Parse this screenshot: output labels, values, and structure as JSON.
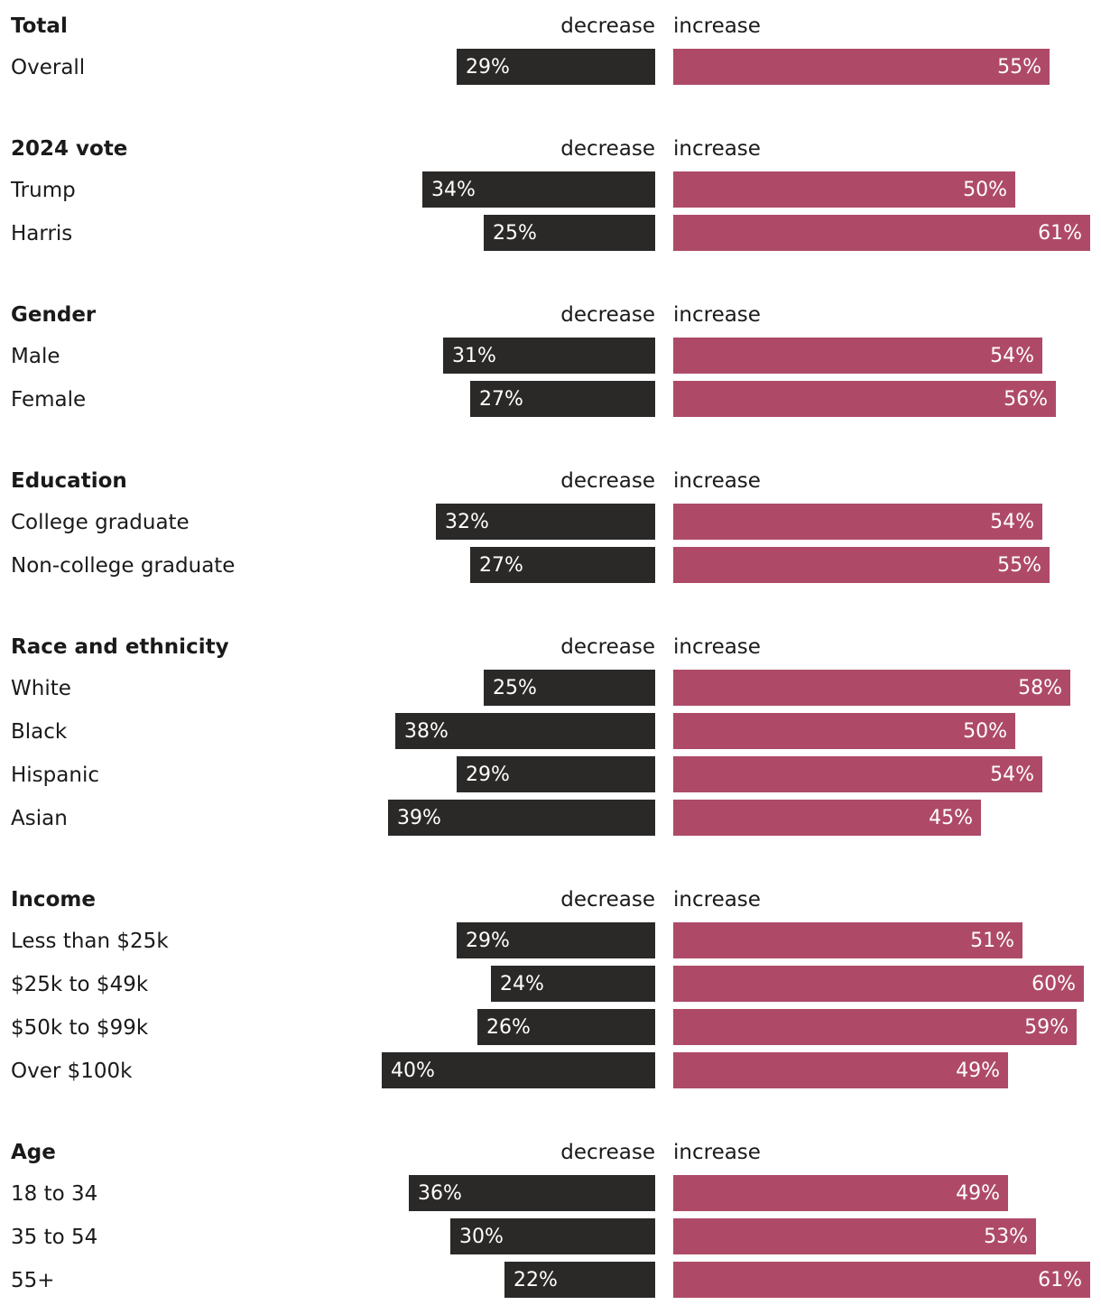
{
  "chart_data": {
    "type": "bar",
    "layout": "diverging",
    "column_labels": {
      "decrease": "decrease",
      "increase": "increase"
    },
    "colors": {
      "decrease": "#2a2928",
      "increase": "#ae4a68"
    },
    "unit": "%",
    "groups": [
      {
        "title": "Total",
        "rows": [
          {
            "label": "Overall",
            "decrease": 29,
            "increase": 55
          }
        ]
      },
      {
        "title": "2024 vote",
        "rows": [
          {
            "label": "Trump",
            "decrease": 34,
            "increase": 50
          },
          {
            "label": "Harris",
            "decrease": 25,
            "increase": 61
          }
        ]
      },
      {
        "title": "Gender",
        "rows": [
          {
            "label": "Male",
            "decrease": 31,
            "increase": 54
          },
          {
            "label": "Female",
            "decrease": 27,
            "increase": 56
          }
        ]
      },
      {
        "title": "Education",
        "rows": [
          {
            "label": "College graduate",
            "decrease": 32,
            "increase": 54
          },
          {
            "label": "Non-college graduate",
            "decrease": 27,
            "increase": 55
          }
        ]
      },
      {
        "title": "Race and ethnicity",
        "rows": [
          {
            "label": "White",
            "decrease": 25,
            "increase": 58
          },
          {
            "label": "Black",
            "decrease": 38,
            "increase": 50
          },
          {
            "label": "Hispanic",
            "decrease": 29,
            "increase": 54
          },
          {
            "label": "Asian",
            "decrease": 39,
            "increase": 45
          }
        ]
      },
      {
        "title": "Income",
        "rows": [
          {
            "label": "Less than $25k",
            "decrease": 29,
            "increase": 51
          },
          {
            "label": "$25k to $49k",
            "decrease": 24,
            "increase": 60
          },
          {
            "label": "$50k to $99k",
            "decrease": 26,
            "increase": 59
          },
          {
            "label": "Over $100k",
            "decrease": 40,
            "increase": 49
          }
        ]
      },
      {
        "title": "Age",
        "rows": [
          {
            "label": "18 to 34",
            "decrease": 36,
            "increase": 49
          },
          {
            "label": "35 to 54",
            "decrease": 30,
            "increase": 53
          },
          {
            "label": "55+",
            "decrease": 22,
            "increase": 61
          }
        ]
      }
    ]
  }
}
